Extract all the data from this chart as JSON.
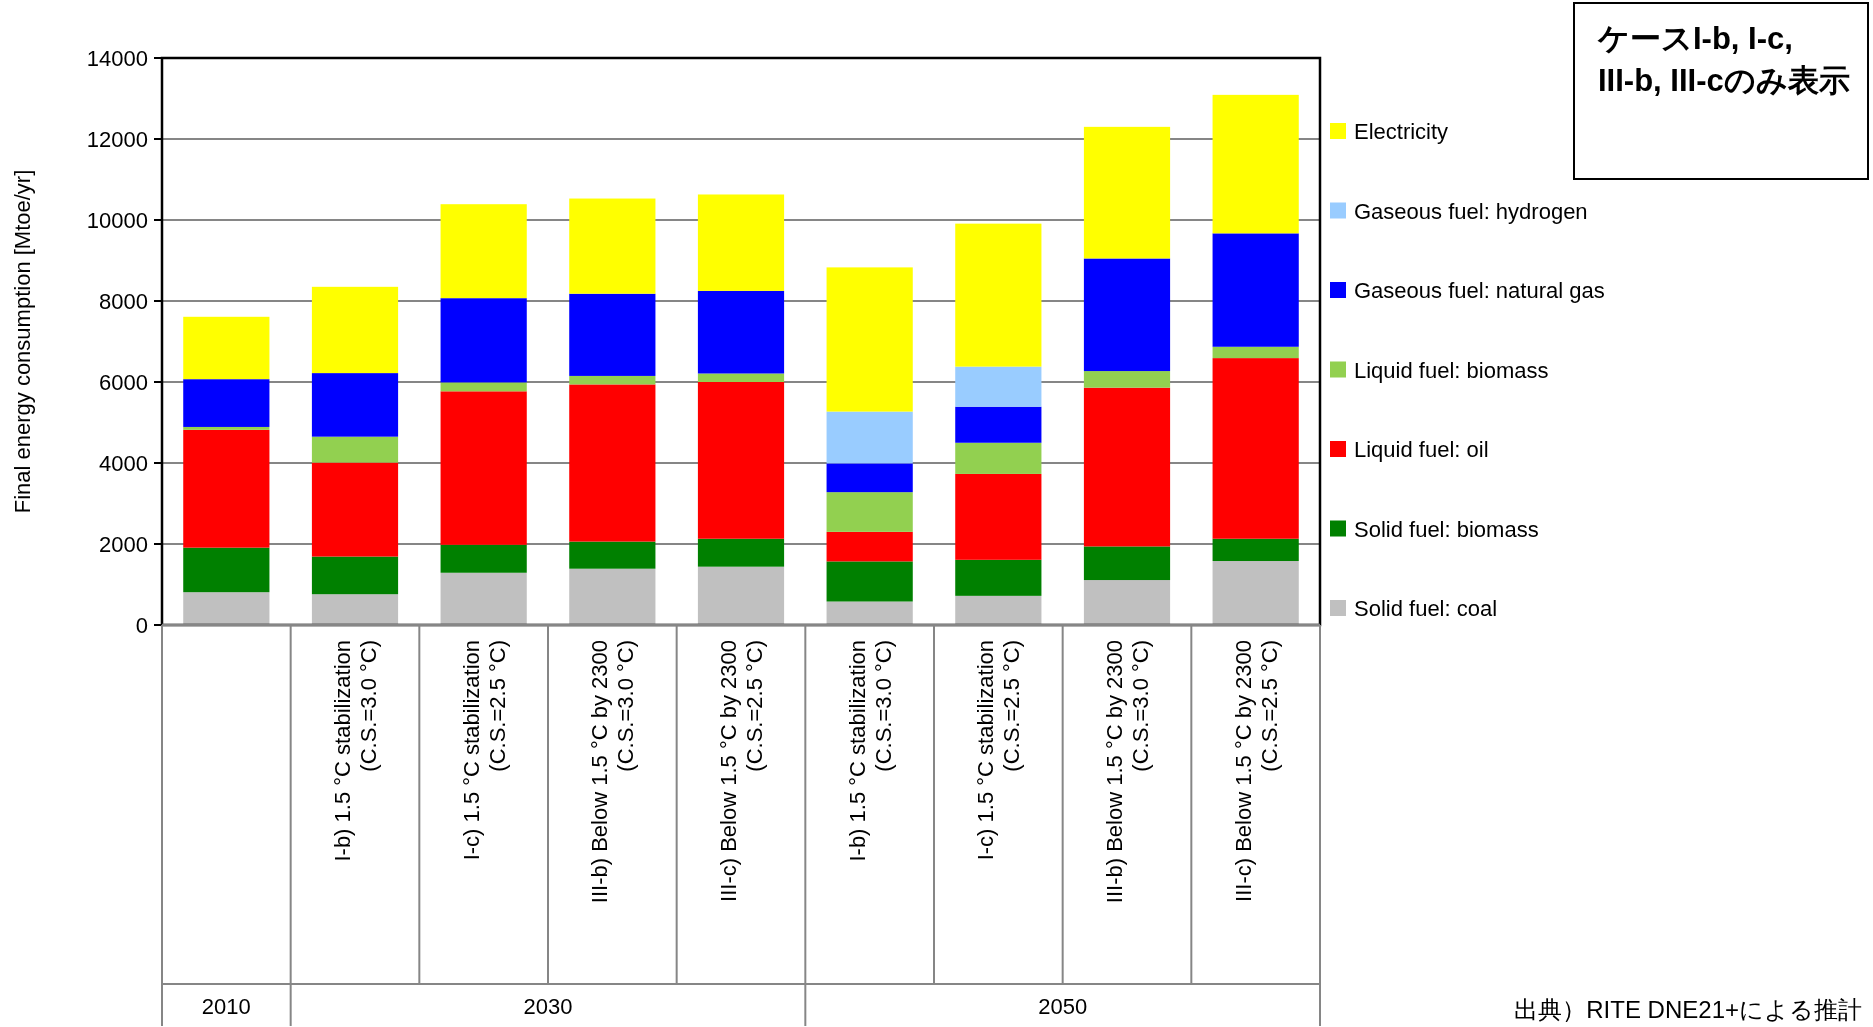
{
  "chart_data": {
    "type": "bar",
    "stacked": true,
    "ylabel": "Final energy consumption [Mtoe/yr]",
    "categories": [
      null,
      "I-b) 1.5 °C stabilization\n(C.S.=3.0 °C)",
      "I-c) 1.5 °C stabilization\n(C.S.=2.5 °C)",
      "III-b) Below 1.5 °C by 2300\n(C.S.=3.0 °C)",
      "III-c) Below 1.5 °C by 2300\n(C.S.=2.5 °C)",
      "I-b) 1.5 °C stabilization\n(C.S.=3.0 °C)",
      "I-c) 1.5 °C stabilization\n(C.S.=2.5 °C)",
      "III-b) Below 1.5 °C by 2300\n(C.S.=3.0 °C)",
      "III-c) Below 1.5 °C by 2300\n(C.S.=2.5 °C)"
    ],
    "series": [
      {
        "name": "Solid fuel: coal",
        "color": "#c0c0c0",
        "values": [
          810,
          760,
          1290,
          1390,
          1440,
          580,
          720,
          1110,
          1580
        ]
      },
      {
        "name": "Solid fuel: biomass",
        "color": "#008000",
        "values": [
          1100,
          930,
          690,
          670,
          690,
          990,
          890,
          830,
          550
        ]
      },
      {
        "name": "Liquid fuel: oil",
        "color": "#ff0000",
        "values": [
          2910,
          2320,
          3790,
          3880,
          3870,
          730,
          2120,
          3920,
          4460
        ]
      },
      {
        "name": "Liquid fuel: biomass",
        "color": "#92d050",
        "values": [
          70,
          640,
          220,
          210,
          210,
          980,
          770,
          410,
          280
        ]
      },
      {
        "name": "Gaseous fuel: natural gas",
        "color": "#0000ff",
        "values": [
          1180,
          1570,
          2080,
          2030,
          2040,
          710,
          890,
          2780,
          2800
        ]
      },
      {
        "name": "Gaseous fuel: hydrogen",
        "color": "#99ccff",
        "values": [
          0,
          0,
          0,
          0,
          0,
          1280,
          990,
          0,
          0
        ]
      },
      {
        "name": "Electricity",
        "color": "#ffff00",
        "values": [
          1540,
          2130,
          2320,
          2350,
          2380,
          3560,
          3530,
          3250,
          3420
        ]
      }
    ],
    "ylim": [
      0,
      14000
    ],
    "yticks": [
      0,
      2000,
      4000,
      6000,
      8000,
      10000,
      12000,
      14000
    ],
    "grid": "y",
    "legend": "right",
    "annotations": [
      "2010",
      "2030",
      "2050",
      "ケースI-b, I-c, III-b, III-cのみ表示",
      "出典）RITE DNE21+による推計"
    ]
  }
}
